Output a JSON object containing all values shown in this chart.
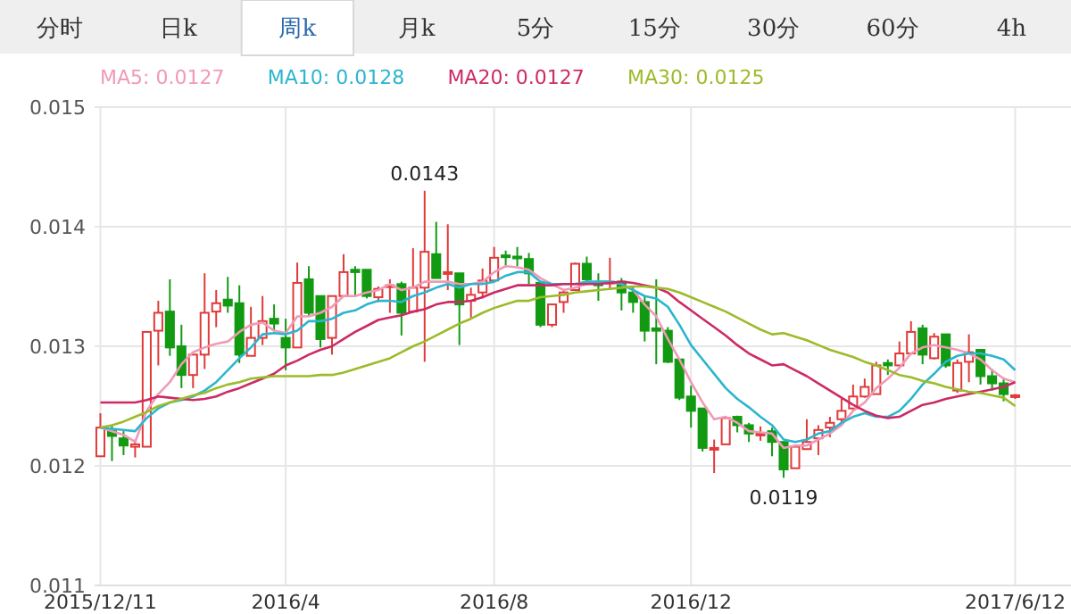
{
  "chart_data": {
    "type": "candlestick",
    "categories": [
      "2015/12/11",
      null,
      null,
      null,
      null,
      null,
      null,
      null,
      null,
      null,
      null,
      null,
      null,
      null,
      null,
      null,
      "2016/4",
      null,
      null,
      null,
      null,
      null,
      null,
      null,
      null,
      null,
      null,
      null,
      null,
      null,
      null,
      null,
      null,
      null,
      "2016/8",
      null,
      null,
      null,
      null,
      null,
      null,
      null,
      null,
      null,
      null,
      null,
      null,
      null,
      null,
      null,
      null,
      "2016/12",
      null,
      null,
      null,
      null,
      null,
      null,
      null,
      null,
      null,
      null,
      null,
      null,
      null,
      null,
      null,
      null,
      null,
      null,
      null,
      null,
      null,
      null,
      null,
      null,
      null,
      null,
      null,
      "2017/6/12"
    ],
    "ohlc": [
      [
        0.01208,
        0.01244,
        0.01208,
        0.01232
      ],
      [
        0.01229,
        0.01234,
        0.01204,
        0.01225
      ],
      [
        0.01223,
        0.01229,
        0.01209,
        0.01217
      ],
      [
        0.01216,
        0.01222,
        0.01207,
        0.01218
      ],
      [
        0.01216,
        0.01312,
        0.01216,
        0.01312
      ],
      [
        0.01313,
        0.01338,
        0.01284,
        0.01328
      ],
      [
        0.01329,
        0.01356,
        0.01292,
        0.01299
      ],
      [
        0.013,
        0.01318,
        0.01265,
        0.01276
      ],
      [
        0.01276,
        0.01293,
        0.01265,
        0.01293
      ],
      [
        0.01293,
        0.01361,
        0.01281,
        0.01328
      ],
      [
        0.01329,
        0.01347,
        0.01316,
        0.01336
      ],
      [
        0.01339,
        0.01358,
        0.01328,
        0.01334
      ],
      [
        0.01336,
        0.01351,
        0.01286,
        0.01293
      ],
      [
        0.01292,
        0.01333,
        0.01292,
        0.01307
      ],
      [
        0.01307,
        0.01342,
        0.01301,
        0.01321
      ],
      [
        0.01323,
        0.01335,
        0.01313,
        0.01319
      ],
      [
        0.01307,
        0.01323,
        0.0128,
        0.01299
      ],
      [
        0.01299,
        0.0137,
        0.01299,
        0.01353
      ],
      [
        0.01356,
        0.01367,
        0.01325,
        0.01328
      ],
      [
        0.01342,
        0.01342,
        0.01299,
        0.01306
      ],
      [
        0.01307,
        0.01342,
        0.01293,
        0.01342
      ],
      [
        0.01342,
        0.01377,
        0.01342,
        0.01362
      ],
      [
        0.01364,
        0.01367,
        0.01342,
        0.01362
      ],
      [
        0.01364,
        0.01364,
        0.0134,
        0.01342
      ],
      [
        0.01341,
        0.0135,
        0.01337,
        0.01348
      ],
      [
        0.0135,
        0.01356,
        0.01328,
        0.01351
      ],
      [
        0.01352,
        0.01354,
        0.01309,
        0.01328
      ],
      [
        0.01329,
        0.01382,
        0.01328,
        0.01349
      ],
      [
        0.01349,
        0.0143,
        0.01287,
        0.01379
      ],
      [
        0.01377,
        0.01404,
        0.01357,
        0.01357
      ],
      [
        0.01361,
        0.01402,
        0.01347,
        0.01362
      ],
      [
        0.01361,
        0.01361,
        0.01301,
        0.01335
      ],
      [
        0.01338,
        0.01349,
        0.01324,
        0.01343
      ],
      [
        0.01345,
        0.01365,
        0.0134,
        0.01355
      ],
      [
        0.01355,
        0.01383,
        0.01355,
        0.01374
      ],
      [
        0.01376,
        0.0138,
        0.01366,
        0.01375
      ],
      [
        0.01375,
        0.01383,
        0.01367,
        0.01374
      ],
      [
        0.01373,
        0.01378,
        0.01352,
        0.01361
      ],
      [
        0.01353,
        0.01353,
        0.01316,
        0.01318
      ],
      [
        0.01318,
        0.01335,
        0.01316,
        0.01335
      ],
      [
        0.01337,
        0.01347,
        0.01328,
        0.01345
      ],
      [
        0.01347,
        0.0137,
        0.01347,
        0.01369
      ],
      [
        0.01369,
        0.01375,
        0.01352,
        0.01356
      ],
      [
        0.01353,
        0.01361,
        0.01338,
        0.01351
      ],
      [
        0.01353,
        0.01374,
        0.01347,
        0.01354
      ],
      [
        0.01354,
        0.01357,
        0.0133,
        0.01345
      ],
      [
        0.01345,
        0.0135,
        0.01328,
        0.01337
      ],
      [
        0.01337,
        0.01342,
        0.01304,
        0.01313
      ],
      [
        0.01315,
        0.01356,
        0.01285,
        0.01313
      ],
      [
        0.01313,
        0.01316,
        0.01286,
        0.01287
      ],
      [
        0.01289,
        0.01289,
        0.01255,
        0.01257
      ],
      [
        0.01258,
        0.01267,
        0.01232,
        0.01246
      ],
      [
        0.01248,
        0.01248,
        0.01212,
        0.01215
      ],
      [
        0.01214,
        0.01222,
        0.01194,
        0.01215
      ],
      [
        0.01218,
        0.01241,
        0.01218,
        0.0124
      ],
      [
        0.01241,
        0.01242,
        0.01228,
        0.01234
      ],
      [
        0.01234,
        0.01236,
        0.0122,
        0.01227
      ],
      [
        0.01226,
        0.01233,
        0.01221,
        0.01227
      ],
      [
        0.01229,
        0.01232,
        0.01208,
        0.0122
      ],
      [
        0.0122,
        0.0122,
        0.0119,
        0.01197
      ],
      [
        0.01198,
        0.01216,
        0.01198,
        0.01216
      ],
      [
        0.01214,
        0.01239,
        0.01214,
        0.0122
      ],
      [
        0.01223,
        0.01234,
        0.01209,
        0.0123
      ],
      [
        0.01232,
        0.01241,
        0.01224,
        0.01236
      ],
      [
        0.01239,
        0.01256,
        0.01234,
        0.01246
      ],
      [
        0.01248,
        0.01268,
        0.01246,
        0.01258
      ],
      [
        0.01258,
        0.01273,
        0.01257,
        0.01266
      ],
      [
        0.0126,
        0.01287,
        0.0126,
        0.01284
      ],
      [
        0.01286,
        0.01289,
        0.01276,
        0.01284
      ],
      [
        0.01284,
        0.01304,
        0.01282,
        0.01294
      ],
      [
        0.01294,
        0.01321,
        0.01293,
        0.01312
      ],
      [
        0.01315,
        0.01318,
        0.01285,
        0.01293
      ],
      [
        0.0129,
        0.01311,
        0.01289,
        0.01308
      ],
      [
        0.0131,
        0.0131,
        0.01282,
        0.01284
      ],
      [
        0.01263,
        0.01289,
        0.01261,
        0.01286
      ],
      [
        0.01287,
        0.0131,
        0.0127,
        0.01295
      ],
      [
        0.01297,
        0.01297,
        0.01268,
        0.01275
      ],
      [
        0.01275,
        0.01281,
        0.01263,
        0.01269
      ],
      [
        0.01269,
        0.01274,
        0.01254,
        0.0126
      ],
      [
        0.01258,
        0.0126,
        0.01256,
        0.01259
      ]
    ],
    "series": [
      {
        "type": "line",
        "name": "MA5: 0.0127",
        "color": "#f09ab6",
        "values": [
          0.01232,
          0.01229,
          0.01226,
          0.0122,
          0.01246,
          0.0126,
          0.0127,
          0.01285,
          0.01295,
          0.01299,
          0.01302,
          0.01304,
          0.01312,
          0.01318,
          0.0132,
          0.01313,
          0.01311,
          0.01325,
          0.01325,
          0.01328,
          0.01333,
          0.01342,
          0.01342,
          0.01345,
          0.01347,
          0.01352,
          0.01347,
          0.01349,
          0.01354,
          0.01354,
          0.01354,
          0.01352,
          0.01352,
          0.01354,
          0.01362,
          0.01367,
          0.01366,
          0.01364,
          0.01357,
          0.01352,
          0.01347,
          0.01349,
          0.01352,
          0.01354,
          0.01354,
          0.01352,
          0.01347,
          0.01335,
          0.01325,
          0.01306,
          0.01289,
          0.0127,
          0.01253,
          0.01239,
          0.01241,
          0.01236,
          0.01229,
          0.01228,
          0.01227,
          0.01215,
          0.01217,
          0.01217,
          0.01222,
          0.01227,
          0.01234,
          0.01246,
          0.01253,
          0.01265,
          0.01273,
          0.01282,
          0.01294,
          0.01299,
          0.01301,
          0.01299,
          0.01297,
          0.01294,
          0.01289,
          0.0128,
          0.01273,
          0.0127
        ]
      },
      {
        "type": "line",
        "name": "MA10: 0.0128",
        "color": "#2cb5cf",
        "values": [
          0.01232,
          0.01231,
          0.0123,
          0.01229,
          0.0124,
          0.01248,
          0.01253,
          0.01255,
          0.01258,
          0.01263,
          0.0127,
          0.0128,
          0.0129,
          0.01299,
          0.0131,
          0.01311,
          0.0131,
          0.01313,
          0.01321,
          0.01321,
          0.01323,
          0.01328,
          0.0133,
          0.01335,
          0.01338,
          0.01338,
          0.01337,
          0.01342,
          0.01345,
          0.01349,
          0.01352,
          0.01349,
          0.01352,
          0.01352,
          0.01354,
          0.01359,
          0.01362,
          0.01362,
          0.01354,
          0.01352,
          0.01352,
          0.01352,
          0.01354,
          0.01354,
          0.01354,
          0.01352,
          0.01347,
          0.01342,
          0.0134,
          0.01333,
          0.01318,
          0.01301,
          0.01289,
          0.01277,
          0.01265,
          0.01256,
          0.01249,
          0.01241,
          0.01234,
          0.01222,
          0.0122,
          0.01222,
          0.01227,
          0.01229,
          0.01236,
          0.01241,
          0.01244,
          0.01241,
          0.01241,
          0.01246,
          0.01256,
          0.01268,
          0.01277,
          0.01287,
          0.01292,
          0.01294,
          0.01294,
          0.01292,
          0.01289,
          0.0128
        ]
      },
      {
        "type": "line",
        "name": "MA20: 0.0127",
        "color": "#cc2a66",
        "values": [
          0.01253,
          0.01253,
          0.01253,
          0.01253,
          0.01255,
          0.01258,
          0.01257,
          0.01256,
          0.01255,
          0.01256,
          0.01258,
          0.01262,
          0.01265,
          0.01269,
          0.01273,
          0.01277,
          0.01284,
          0.01288,
          0.01293,
          0.01297,
          0.013,
          0.01306,
          0.01312,
          0.01317,
          0.01322,
          0.01324,
          0.01326,
          0.01329,
          0.01331,
          0.01335,
          0.01337,
          0.01337,
          0.01338,
          0.01341,
          0.01345,
          0.01348,
          0.01351,
          0.01351,
          0.01351,
          0.01351,
          0.01352,
          0.01352,
          0.01352,
          0.01352,
          0.01353,
          0.01354,
          0.01353,
          0.01351,
          0.01349,
          0.01345,
          0.01337,
          0.0133,
          0.01323,
          0.01316,
          0.01309,
          0.01301,
          0.01294,
          0.01289,
          0.01284,
          0.01285,
          0.0128,
          0.01275,
          0.01269,
          0.01263,
          0.01257,
          0.01251,
          0.01246,
          0.01242,
          0.0124,
          0.01241,
          0.01246,
          0.01251,
          0.01253,
          0.01256,
          0.01258,
          0.0126,
          0.01262,
          0.01264,
          0.01266,
          0.0127
        ]
      },
      {
        "type": "line",
        "name": "MA30: 0.0125",
        "color": "#9cbb2a",
        "values": [
          0.01232,
          0.01234,
          0.01237,
          0.01241,
          0.01245,
          0.0125,
          0.01253,
          0.01256,
          0.01259,
          0.01261,
          0.01265,
          0.01268,
          0.0127,
          0.01273,
          0.01274,
          0.01275,
          0.01275,
          0.01275,
          0.01275,
          0.01276,
          0.01276,
          0.01278,
          0.01281,
          0.01284,
          0.01287,
          0.0129,
          0.01295,
          0.013,
          0.01304,
          0.01309,
          0.01314,
          0.01319,
          0.01323,
          0.01328,
          0.01332,
          0.01335,
          0.01338,
          0.01338,
          0.01341,
          0.01342,
          0.01343,
          0.01345,
          0.01346,
          0.01347,
          0.01348,
          0.01349,
          0.0135,
          0.0135,
          0.01349,
          0.01348,
          0.01345,
          0.01341,
          0.01337,
          0.01333,
          0.01329,
          0.01324,
          0.01319,
          0.01314,
          0.0131,
          0.01311,
          0.01308,
          0.01305,
          0.01301,
          0.01297,
          0.01294,
          0.01291,
          0.01287,
          0.01284,
          0.0128,
          0.01276,
          0.01274,
          0.01271,
          0.01269,
          0.01266,
          0.01264,
          0.01262,
          0.01261,
          0.01259,
          0.01257,
          0.0125
        ]
      }
    ],
    "ylim": [
      0.011,
      0.015
    ],
    "yticks": [
      0.011,
      0.012,
      0.013,
      0.014,
      0.015
    ],
    "grid": true,
    "legend": "top left",
    "annotations": [
      "分时",
      "日k",
      "周k",
      "月k",
      "5分",
      "15分",
      "30分",
      "60分",
      "4h",
      {
        "text": "0.0143",
        "y": 0.0143
      },
      {
        "text": "0.0119",
        "y": 0.0119
      }
    ]
  }
}
